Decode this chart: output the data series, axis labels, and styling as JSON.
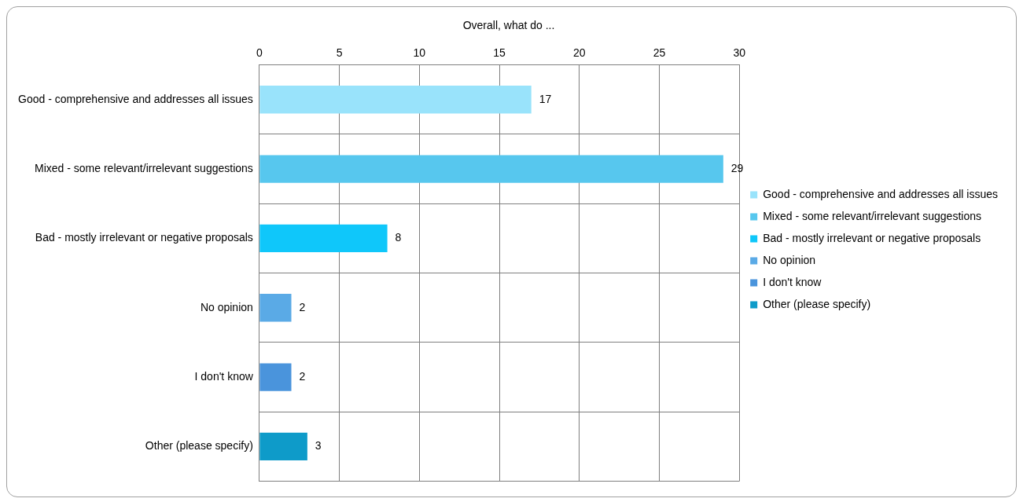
{
  "chart_data": {
    "type": "bar",
    "orientation": "horizontal",
    "stacked": true,
    "title": "Overall, what do ...",
    "categories": [
      "Good - comprehensive and addresses all issues",
      "Mixed - some relevant/irrelevant suggestions",
      "Bad - mostly irrelevant or negative proposals",
      "No opinion",
      "I don't know",
      "Other (please specify)"
    ],
    "series": [
      {
        "name": "Good - comprehensive and addresses all issues",
        "color": "#99e3fb",
        "values": [
          17,
          null,
          null,
          null,
          null,
          null
        ]
      },
      {
        "name": "Mixed - some relevant/irrelevant suggestions",
        "color": "#57c7ee",
        "values": [
          null,
          29,
          null,
          null,
          null,
          null
        ]
      },
      {
        "name": "Bad - mostly irrelevant or negative proposals",
        "color": "#0fc7fa",
        "values": [
          null,
          null,
          8,
          null,
          null,
          null
        ]
      },
      {
        "name": "No opinion",
        "color": "#5aaae6",
        "values": [
          null,
          null,
          null,
          2,
          null,
          null
        ]
      },
      {
        "name": "I don't know",
        "color": "#4a94dc",
        "values": [
          null,
          null,
          null,
          null,
          2,
          null
        ]
      },
      {
        "name": "Other (please specify)",
        "color": "#0e9bc9",
        "values": [
          null,
          null,
          null,
          null,
          null,
          3
        ]
      }
    ],
    "xlim": [
      0,
      30
    ],
    "xticks": [
      0,
      5,
      10,
      15,
      20,
      25,
      30
    ],
    "grid": true,
    "legend": "right",
    "data_labels": true
  }
}
